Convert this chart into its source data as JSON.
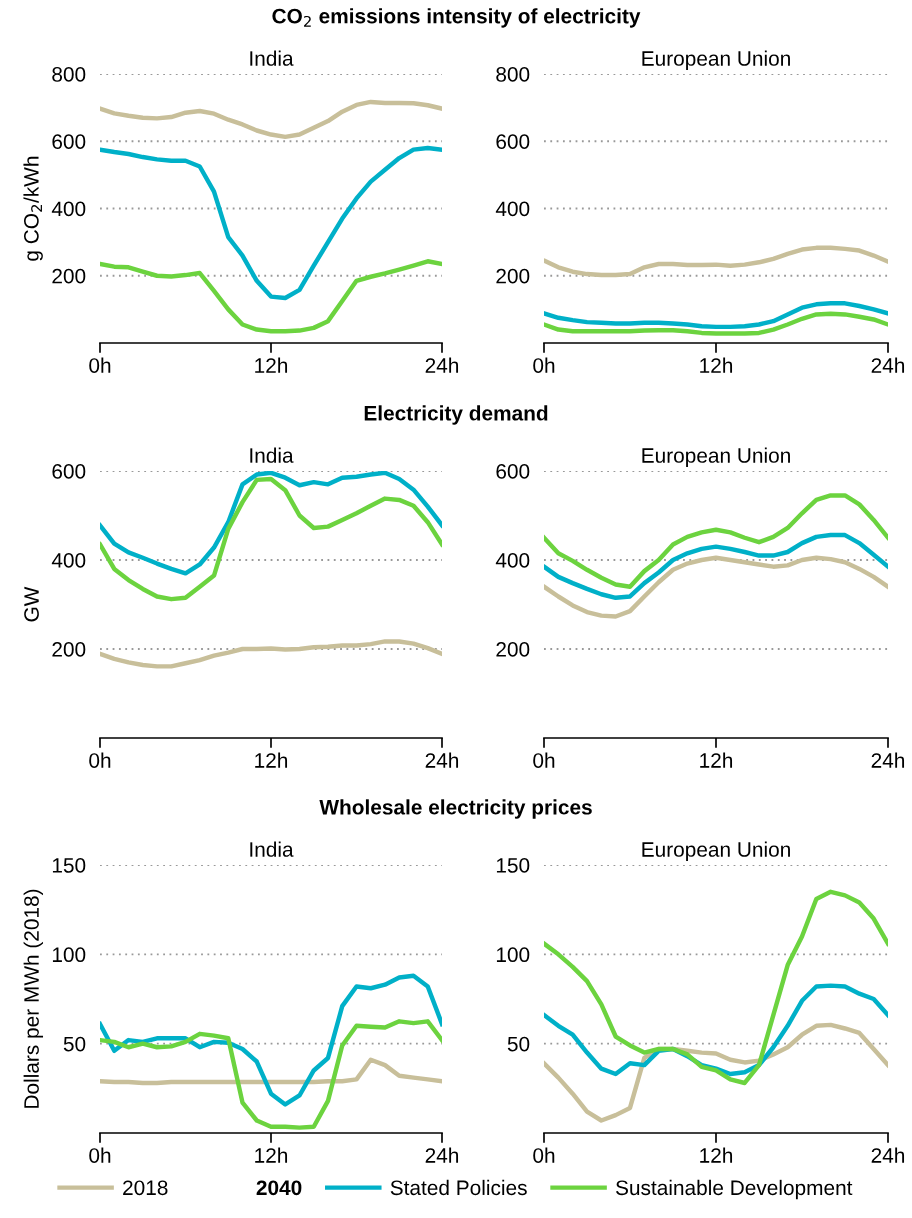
{
  "chart_data": [
    {
      "type": "line",
      "title": "CO$_{2}$ emissions intensity of electricity",
      "subtitle": "India",
      "ylabel": "g CO$_{2}$/kWh",
      "x": [
        0,
        1,
        2,
        3,
        4,
        5,
        6,
        7,
        8,
        9,
        10,
        11,
        12,
        13,
        14,
        15,
        16,
        17,
        18,
        19,
        20,
        21,
        22,
        23,
        24
      ],
      "xlim": [
        0,
        24
      ],
      "xticks": [
        {
          "value": 0,
          "label": "0h"
        },
        {
          "value": 12,
          "label": "12h"
        },
        {
          "value": 24,
          "label": "24h"
        }
      ],
      "ylim": [
        0,
        800
      ],
      "yticks": [
        200,
        400,
        600,
        800
      ],
      "grid": "y",
      "legend": "bottom",
      "annotations": [
        "2040"
      ],
      "series": [
        {
          "name": "2018",
          "color": "#c8bf9a",
          "values": [
            697,
            683,
            676,
            670,
            668,
            672,
            685,
            690,
            682,
            664,
            650,
            632,
            620,
            613,
            620,
            640,
            660,
            688,
            708,
            717,
            714,
            714,
            713,
            707,
            697
          ]
        },
        {
          "name": "Stated Policies",
          "color": "#00b0c8",
          "values": [
            575,
            568,
            562,
            553,
            546,
            542,
            542,
            525,
            450,
            315,
            260,
            185,
            138,
            134,
            158,
            230,
            300,
            370,
            430,
            480,
            515,
            550,
            575,
            580,
            575
          ]
        },
        {
          "name": "Sustainable Development",
          "color": "#6cd33f",
          "values": [
            235,
            227,
            225,
            212,
            200,
            198,
            202,
            208,
            155,
            100,
            55,
            40,
            35,
            35,
            37,
            45,
            65,
            125,
            185,
            197,
            207,
            218,
            230,
            243,
            235
          ]
        }
      ]
    },
    {
      "type": "line",
      "subtitle": "European Union",
      "x": [
        0,
        1,
        2,
        3,
        4,
        5,
        6,
        7,
        8,
        9,
        10,
        11,
        12,
        13,
        14,
        15,
        16,
        17,
        18,
        19,
        20,
        21,
        22,
        23,
        24
      ],
      "xlim": [
        0,
        24
      ],
      "xticks": [
        {
          "value": 0,
          "label": "0h"
        },
        {
          "value": 12,
          "label": "12h"
        },
        {
          "value": 24,
          "label": "24h"
        }
      ],
      "ylim": [
        0,
        800
      ],
      "yticks": [
        200,
        400,
        600,
        800
      ],
      "grid": "y",
      "series": [
        {
          "color": "#c8bf9a",
          "values": [
            245,
            225,
            212,
            205,
            202,
            202,
            205,
            225,
            235,
            235,
            232,
            232,
            233,
            230,
            233,
            240,
            250,
            265,
            278,
            283,
            283,
            280,
            275,
            260,
            242
          ]
        },
        {
          "color": "#00b0c8",
          "values": [
            88,
            75,
            68,
            62,
            60,
            58,
            58,
            60,
            60,
            58,
            55,
            50,
            48,
            48,
            50,
            55,
            65,
            85,
            105,
            115,
            118,
            118,
            110,
            100,
            88
          ]
        },
        {
          "color": "#6cd33f",
          "values": [
            55,
            40,
            35,
            35,
            35,
            35,
            35,
            37,
            38,
            38,
            35,
            30,
            28,
            28,
            28,
            30,
            40,
            55,
            72,
            85,
            87,
            85,
            78,
            70,
            55
          ]
        }
      ]
    },
    {
      "type": "line",
      "title": "Electricity demand",
      "subtitle": "India",
      "ylabel": "GW",
      "x": [
        0,
        1,
        2,
        3,
        4,
        5,
        6,
        7,
        8,
        9,
        10,
        11,
        12,
        13,
        14,
        15,
        16,
        17,
        18,
        19,
        20,
        21,
        22,
        23,
        24
      ],
      "xlim": [
        0,
        24
      ],
      "xticks": [
        {
          "value": 0,
          "label": "0h"
        },
        {
          "value": 12,
          "label": "12h"
        },
        {
          "value": 24,
          "label": "24h"
        }
      ],
      "ylim": [
        0,
        600
      ],
      "yticks": [
        200,
        400,
        600
      ],
      "grid": "y",
      "series": [
        {
          "color": "#c8bf9a",
          "values": [
            189,
            178,
            170,
            164,
            161,
            161,
            168,
            175,
            185,
            192,
            200,
            200,
            201,
            199,
            200,
            204,
            205,
            208,
            208,
            211,
            217,
            217,
            212,
            202,
            189
          ]
        },
        {
          "color": "#00b0c8",
          "values": [
            478,
            437,
            417,
            405,
            392,
            380,
            370,
            390,
            428,
            485,
            570,
            592,
            596,
            585,
            568,
            575,
            570,
            585,
            587,
            592,
            596,
            582,
            558,
            520,
            478
          ]
        },
        {
          "color": "#6cd33f",
          "values": [
            435,
            380,
            355,
            335,
            318,
            312,
            315,
            340,
            365,
            470,
            530,
            580,
            582,
            557,
            500,
            472,
            475,
            490,
            505,
            522,
            538,
            535,
            522,
            485,
            435
          ]
        }
      ]
    },
    {
      "type": "line",
      "subtitle": "European Union",
      "x": [
        0,
        1,
        2,
        3,
        4,
        5,
        6,
        7,
        8,
        9,
        10,
        11,
        12,
        13,
        14,
        15,
        16,
        17,
        18,
        19,
        20,
        21,
        22,
        23,
        24
      ],
      "xlim": [
        0,
        24
      ],
      "xticks": [
        {
          "value": 0,
          "label": "0h"
        },
        {
          "value": 12,
          "label": "12h"
        },
        {
          "value": 24,
          "label": "24h"
        }
      ],
      "ylim": [
        0,
        600
      ],
      "yticks": [
        200,
        400,
        600
      ],
      "grid": "y",
      "series": [
        {
          "color": "#c8bf9a",
          "values": [
            340,
            318,
            298,
            283,
            275,
            273,
            285,
            318,
            350,
            378,
            392,
            400,
            405,
            400,
            395,
            390,
            385,
            388,
            400,
            405,
            402,
            395,
            380,
            362,
            340
          ]
        },
        {
          "color": "#00b0c8",
          "values": [
            385,
            362,
            348,
            335,
            323,
            315,
            318,
            348,
            372,
            400,
            415,
            425,
            430,
            425,
            418,
            410,
            410,
            418,
            438,
            452,
            456,
            456,
            438,
            412,
            385
          ]
        },
        {
          "color": "#6cd33f",
          "values": [
            450,
            415,
            398,
            378,
            360,
            345,
            340,
            375,
            400,
            435,
            452,
            462,
            468,
            462,
            450,
            440,
            452,
            472,
            505,
            535,
            545,
            545,
            525,
            490,
            450
          ]
        }
      ]
    },
    {
      "type": "line",
      "title": "Wholesale electricity prices",
      "subtitle": "India",
      "ylabel": "Dollars per MWh (2018)",
      "x": [
        0,
        1,
        2,
        3,
        4,
        5,
        6,
        7,
        8,
        9,
        10,
        11,
        12,
        13,
        14,
        15,
        16,
        17,
        18,
        19,
        20,
        21,
        22,
        23,
        24
      ],
      "xlim": [
        0,
        24
      ],
      "xticks": [
        {
          "value": 0,
          "label": "0h"
        },
        {
          "value": 12,
          "label": "12h"
        },
        {
          "value": 24,
          "label": "24h"
        }
      ],
      "ylim": [
        0,
        150
      ],
      "yticks": [
        50,
        100,
        150
      ],
      "grid": "y",
      "series": [
        {
          "color": "#c8bf9a",
          "values": [
            29,
            28.5,
            28.5,
            28,
            28,
            28.5,
            28.5,
            28.5,
            28.5,
            28.5,
            28.5,
            28.5,
            28.5,
            28.5,
            28.5,
            28.5,
            29,
            29,
            30,
            41,
            38,
            32,
            31,
            30,
            29
          ]
        },
        {
          "color": "#00b0c8",
          "values": [
            61,
            46,
            52,
            51,
            53,
            53,
            53,
            48,
            51,
            50.5,
            47,
            40,
            22,
            16,
            21,
            35,
            42,
            71,
            82,
            81,
            83,
            87,
            88,
            82,
            61
          ]
        },
        {
          "color": "#6cd33f",
          "values": [
            52,
            51,
            48,
            50,
            48,
            48.5,
            51,
            55.5,
            54.5,
            53,
            17,
            7,
            3.5,
            3.5,
            3,
            3.5,
            18,
            49,
            60,
            59.5,
            59,
            62.5,
            61.5,
            62.5,
            52
          ]
        }
      ]
    },
    {
      "type": "line",
      "subtitle": "European Union",
      "x": [
        0,
        1,
        2,
        3,
        4,
        5,
        6,
        7,
        8,
        9,
        10,
        11,
        12,
        13,
        14,
        15,
        16,
        17,
        18,
        19,
        20,
        21,
        22,
        23,
        24
      ],
      "xlim": [
        0,
        24
      ],
      "xticks": [
        {
          "value": 0,
          "label": "0h"
        },
        {
          "value": 12,
          "label": "12h"
        },
        {
          "value": 24,
          "label": "24h"
        }
      ],
      "ylim": [
        0,
        150
      ],
      "yticks": [
        50,
        100,
        150
      ],
      "grid": "y",
      "series": [
        {
          "color": "#c8bf9a",
          "values": [
            39,
            31,
            22,
            12,
            7,
            10,
            14,
            42,
            47,
            47,
            46,
            45,
            44.5,
            41,
            39.5,
            40.5,
            44,
            48,
            55,
            60,
            60.5,
            58.5,
            56,
            47,
            38
          ]
        },
        {
          "color": "#00b0c8",
          "values": [
            66,
            60,
            55,
            45,
            36,
            33,
            39,
            38,
            46,
            47,
            43,
            38,
            36,
            33,
            34,
            38,
            48,
            60,
            74,
            82,
            82.5,
            82,
            78,
            75,
            66
          ]
        },
        {
          "color": "#6cd33f",
          "values": [
            106,
            100,
            93,
            85,
            72,
            54,
            49,
            45,
            47,
            47,
            44,
            37,
            35,
            30,
            28,
            38,
            66,
            94,
            110,
            131,
            135,
            133,
            129,
            120,
            106
          ]
        }
      ]
    }
  ]
}
